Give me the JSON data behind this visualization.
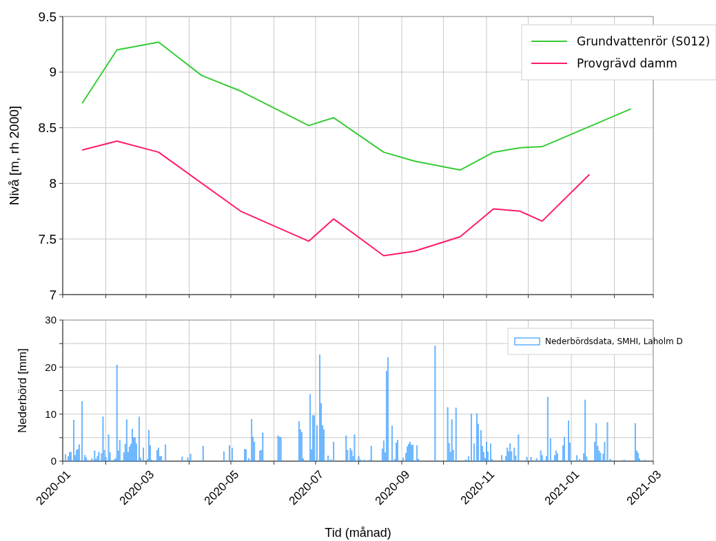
{
  "chart_data": [
    {
      "type": "line",
      "ylabel": "Nivå [m, rh 2000]",
      "xlim": [
        "2020-01-01",
        "2021-03-01"
      ],
      "ylim": [
        7,
        9.5
      ],
      "yticks": [
        7,
        7.5,
        8,
        8.5,
        9,
        9.5
      ],
      "xticks": [
        "2020-01",
        {
          "value": "2020-02",
          "label": null
        },
        "2020-03",
        {
          "value": "2020-04",
          "label": null
        },
        "2020-05",
        {
          "value": "2020-06",
          "label": null
        },
        "2020-07",
        {
          "value": "2020-08",
          "label": null
        },
        "2020-09",
        {
          "value": "2020-10",
          "label": null
        },
        "2020-11",
        {
          "value": "2020-12",
          "label": null
        },
        "2021-01",
        {
          "value": "2021-02",
          "label": null
        },
        "2021-03"
      ],
      "tick_labels": "y",
      "grid": true,
      "legend": "top right",
      "line_style": "solid",
      "marker": "none",
      "series": [
        {
          "name": "Grundvattenrör (S012)",
          "color": "#33cc33",
          "x": [
            "2020-01-15",
            "2020-02-09",
            "2020-03-10",
            "2020-04-10",
            "2020-05-08",
            "2020-06-26",
            "2020-07-14",
            "2020-08-19",
            "2020-09-10",
            "2020-10-13",
            "2020-11-06",
            "2020-11-25",
            "2020-12-11",
            "2021-02-13"
          ],
          "values": [
            8.72,
            9.2,
            9.27,
            8.97,
            8.83,
            8.52,
            8.59,
            8.28,
            8.2,
            8.12,
            8.28,
            8.32,
            8.33,
            8.67
          ]
        },
        {
          "name": "Provgrävd damm",
          "color": "#ff1a66",
          "x": [
            "2020-01-15",
            "2020-02-09",
            "2020-03-10",
            "2020-05-08",
            "2020-06-26",
            "2020-07-14",
            "2020-08-19",
            "2020-09-10",
            "2020-10-13",
            "2020-11-06",
            "2020-11-25",
            "2020-12-11",
            "2021-01-14"
          ],
          "values": [
            8.3,
            8.38,
            8.28,
            7.75,
            7.48,
            7.68,
            7.35,
            7.39,
            7.52,
            7.77,
            7.75,
            7.66,
            8.08
          ]
        }
      ]
    },
    {
      "type": "bar",
      "ylabel": "Nederbörd [mm]",
      "xlabel": "Tid (månad)",
      "xlim": [
        "2020-01-01",
        "2021-03-01"
      ],
      "ylim": [
        0,
        30
      ],
      "yticks": [
        0,
        {
          "value": 5,
          "label": null
        },
        10,
        {
          "value": 15,
          "label": null
        },
        20,
        {
          "value": 25,
          "label": null
        },
        30
      ],
      "xticks": [
        "2020-01",
        {
          "value": "2020-02",
          "label": null
        },
        "2020-03",
        {
          "value": "2020-04",
          "label": null
        },
        "2020-05",
        {
          "value": "2020-06",
          "label": null
        },
        "2020-07",
        {
          "value": "2020-08",
          "label": null
        },
        "2020-09",
        {
          "value": "2020-10",
          "label": null
        },
        "2020-11",
        {
          "value": "2020-12",
          "label": null
        },
        "2021-01",
        {
          "value": "2021-02",
          "label": null
        },
        "2021-03"
      ],
      "grid": true,
      "legend": "top right",
      "series": [
        {
          "name": "Nederbördsdata, SMHI, Laholm D",
          "color": "#3399ff",
          "x": [
            "2020-01-03",
            "2020-01-05",
            "2020-01-06",
            "2020-01-07",
            "2020-01-09",
            "2020-01-10",
            "2020-01-11",
            "2020-01-12",
            "2020-01-13",
            "2020-01-15",
            "2020-01-17",
            "2020-01-18",
            "2020-01-22",
            "2020-01-24",
            "2020-01-25",
            "2020-01-26",
            "2020-01-27",
            "2020-01-29",
            "2020-01-30",
            "2020-01-31",
            "2020-02-01",
            "2020-02-03",
            "2020-02-04",
            "2020-02-07",
            "2020-02-08",
            "2020-02-09",
            "2020-02-10",
            "2020-02-11",
            "2020-02-14",
            "2020-02-15",
            "2020-02-16",
            "2020-02-17",
            "2020-02-18",
            "2020-02-19",
            "2020-02-20",
            "2020-02-21",
            "2020-02-22",
            "2020-02-23",
            "2020-02-25",
            "2020-02-26",
            "2020-02-28",
            "2020-03-02",
            "2020-03-03",
            "2020-03-04",
            "2020-03-05",
            "2020-03-09",
            "2020-03-10",
            "2020-03-11",
            "2020-03-12",
            "2020-03-15",
            "2020-03-27",
            "2020-03-31",
            "2020-04-02",
            "2020-04-11",
            "2020-04-26",
            "2020-04-30",
            "2020-05-02",
            "2020-05-11",
            "2020-05-12",
            "2020-05-14",
            "2020-05-16",
            "2020-05-17",
            "2020-05-18",
            "2020-05-22",
            "2020-05-23",
            "2020-05-24",
            "2020-06-04",
            "2020-06-05",
            "2020-06-06",
            "2020-06-19",
            "2020-06-20",
            "2020-06-21",
            "2020-06-22",
            "2020-06-27",
            "2020-06-28",
            "2020-06-29",
            "2020-06-30",
            "2020-07-02",
            "2020-07-04",
            "2020-07-05",
            "2020-07-06",
            "2020-07-07",
            "2020-07-10",
            "2020-07-12",
            "2020-07-14",
            "2020-07-23",
            "2020-07-24",
            "2020-07-26",
            "2020-07-27",
            "2020-07-28",
            "2020-07-29",
            "2020-08-01",
            "2020-08-02",
            "2020-08-05",
            "2020-08-09",
            "2020-08-10",
            "2020-08-18",
            "2020-08-19",
            "2020-08-20",
            "2020-08-21",
            "2020-08-22",
            "2020-08-25",
            "2020-08-27",
            "2020-08-28",
            "2020-08-29",
            "2020-09-02",
            "2020-09-04",
            "2020-09-05",
            "2020-09-06",
            "2020-09-07",
            "2020-09-08",
            "2020-09-09",
            "2020-09-12",
            "2020-09-13",
            "2020-09-25",
            "2020-10-04",
            "2020-10-05",
            "2020-10-06",
            "2020-10-07",
            "2020-10-08",
            "2020-10-10",
            "2020-10-17",
            "2020-10-19",
            "2020-10-21",
            "2020-10-23",
            "2020-10-25",
            "2020-10-26",
            "2020-10-28",
            "2020-10-29",
            "2020-10-30",
            "2020-10-31",
            "2020-11-01",
            "2020-11-02",
            "2020-11-04",
            "2020-11-05",
            "2020-11-12",
            "2020-11-15",
            "2020-11-16",
            "2020-11-17",
            "2020-11-18",
            "2020-11-19",
            "2020-11-21",
            "2020-11-22",
            "2020-11-24",
            "2020-11-30",
            "2020-12-03",
            "2020-12-07",
            "2020-12-10",
            "2020-12-11",
            "2020-12-14",
            "2020-12-15",
            "2020-12-17",
            "2020-12-20",
            "2020-12-21",
            "2020-12-22",
            "2020-12-26",
            "2020-12-27",
            "2020-12-30",
            "2020-12-31",
            "2021-01-05",
            "2021-01-07",
            "2021-01-10",
            "2021-01-11",
            "2021-01-12",
            "2021-01-18",
            "2021-01-19",
            "2021-01-20",
            "2021-01-21",
            "2021-01-22",
            "2021-01-24",
            "2021-01-25",
            "2021-01-27",
            "2021-01-29",
            "2021-02-08",
            "2021-02-16",
            "2021-02-17",
            "2021-02-18",
            "2021-02-19",
            "2021-02-23"
          ],
          "values": [
            1.4,
            1.0,
            1.9,
            1.9,
            8.7,
            1.2,
            2.3,
            2.5,
            3.5,
            12.7,
            1.2,
            0.7,
            0.5,
            2.2,
            0.4,
            1.0,
            1.9,
            1.6,
            9.4,
            2.3,
            0.8,
            5.6,
            1.8,
            0.3,
            0.5,
            20.4,
            2.2,
            4.4,
            1.8,
            3.6,
            8.8,
            1.9,
            3.0,
            3.6,
            6.8,
            5.0,
            5.0,
            3.7,
            9.4,
            0.7,
            2.8,
            0.4,
            6.6,
            3.3,
            0.2,
            2.3,
            2.8,
            1.0,
            1.0,
            3.5,
            0.9,
            0.7,
            1.5,
            3.2,
            2.0,
            3.3,
            2.8,
            2.5,
            2.4,
            0.5,
            8.9,
            5.1,
            4.0,
            2.2,
            2.3,
            6.0,
            5.4,
            5.1,
            5.0,
            8.4,
            6.7,
            6.1,
            0.5,
            14.2,
            2.4,
            9.7,
            9.7,
            7.6,
            22.6,
            12.3,
            7.6,
            6.7,
            1.1,
            0.3,
            4.0,
            5.4,
            2.3,
            2.7,
            2.2,
            1.0,
            5.6,
            1.0,
            0.3,
            0.2,
            0.2,
            3.2,
            2.6,
            4.3,
            1.8,
            19.1,
            22.0,
            7.5,
            0.4,
            3.9,
            4.5,
            0.7,
            1.7,
            3.1,
            3.6,
            4.0,
            3.4,
            3.4,
            3.3,
            0.4,
            24.5,
            11.4,
            3.8,
            1.9,
            8.8,
            2.3,
            11.3,
            0.3,
            1.0,
            10.0,
            3.7,
            10.1,
            7.9,
            6.5,
            3.2,
            1.9,
            0.6,
            4.1,
            2.0,
            3.7,
            0.4,
            1.2,
            1.0,
            2.8,
            2.0,
            3.7,
            2.0,
            2.8,
            1.1,
            5.6,
            0.8,
            0.8,
            0.5,
            2.2,
            1.2,
            1.0,
            13.6,
            4.8,
            1.2,
            2.2,
            1.6,
            3.3,
            5.1,
            8.6,
            3.9,
            1.2,
            0.4,
            1.6,
            13.0,
            0.9,
            4.0,
            8.0,
            3.2,
            2.2,
            1.7,
            1.5,
            4.0,
            8.2,
            0.4,
            0.2,
            8.0,
            2.2,
            1.7,
            0.5,
            0.2
          ]
        }
      ]
    }
  ]
}
